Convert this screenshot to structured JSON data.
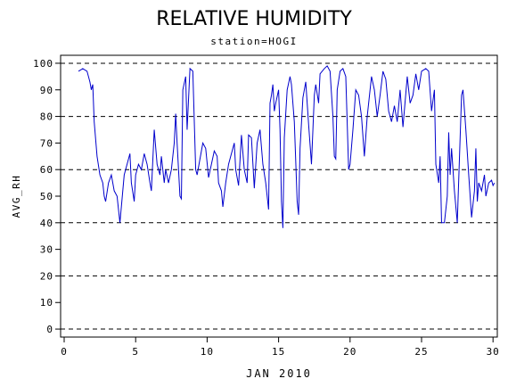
{
  "chart_data": {
    "type": "line",
    "title": "RELATIVE HUMIDITY",
    "subtitle": "station=HOGI",
    "y_label": "AVG_RH",
    "x_label": "JAN 2010",
    "color": "#0000cc",
    "xlim": [
      -0.25,
      30.3
    ],
    "ylim": [
      -3,
      103
    ],
    "xticks": [
      0,
      5,
      10,
      15,
      20,
      25,
      30
    ],
    "yticks": [
      0,
      10,
      20,
      30,
      40,
      50,
      60,
      70,
      80,
      90,
      100
    ],
    "ygrid": [
      0,
      20,
      40,
      60,
      80,
      100
    ],
    "x": [
      1.0,
      1.3,
      1.6,
      1.8,
      1.9,
      2.0,
      2.1,
      2.3,
      2.5,
      2.7,
      2.8,
      2.9,
      3.1,
      3.3,
      3.5,
      3.7,
      3.8,
      3.9,
      4.0,
      4.2,
      4.4,
      4.6,
      4.7,
      4.9,
      5.0,
      5.2,
      5.4,
      5.6,
      5.8,
      6.0,
      6.1,
      6.3,
      6.5,
      6.7,
      6.8,
      7.0,
      7.1,
      7.3,
      7.5,
      7.7,
      7.8,
      7.9,
      8.1,
      8.2,
      8.3,
      8.5,
      8.6,
      8.8,
      9.0,
      9.2,
      9.3,
      9.5,
      9.7,
      9.9,
      10.1,
      10.3,
      10.5,
      10.7,
      10.8,
      11.0,
      11.1,
      11.3,
      11.5,
      11.7,
      11.9,
      12.0,
      12.2,
      12.4,
      12.6,
      12.8,
      12.9,
      13.1,
      13.3,
      13.5,
      13.7,
      13.9,
      14.1,
      14.3,
      14.4,
      14.5,
      14.6,
      14.7,
      14.8,
      15.0,
      15.1,
      15.2,
      15.3,
      15.4,
      15.6,
      15.8,
      15.9,
      16.1,
      16.3,
      16.4,
      16.5,
      16.7,
      16.9,
      17.1,
      17.3,
      17.5,
      17.6,
      17.8,
      17.9,
      18.2,
      18.4,
      18.6,
      18.8,
      18.9,
      19.0,
      19.1,
      19.3,
      19.5,
      19.7,
      19.9,
      20.0,
      20.2,
      20.4,
      20.6,
      20.8,
      21.0,
      21.2,
      21.5,
      21.7,
      21.9,
      22.1,
      22.3,
      22.5,
      22.7,
      22.9,
      23.1,
      23.3,
      23.5,
      23.7,
      24.0,
      24.2,
      24.4,
      24.6,
      24.8,
      25.0,
      25.3,
      25.5,
      25.7,
      25.9,
      26.0,
      26.2,
      26.3,
      26.4,
      26.6,
      26.8,
      26.9,
      27.0,
      27.1,
      27.3,
      27.5,
      27.7,
      27.8,
      27.9,
      28.1,
      28.3,
      28.5,
      28.7,
      28.8,
      28.9,
      29.0,
      29.2,
      29.4,
      29.5,
      29.7,
      29.9,
      30.0,
      30.1
    ],
    "values": [
      97,
      98,
      97,
      93,
      90,
      92,
      78,
      65,
      58,
      55,
      50,
      48,
      55,
      58,
      52,
      50,
      45,
      40,
      46,
      58,
      62,
      66,
      55,
      48,
      58,
      62,
      60,
      66,
      62,
      55,
      52,
      75,
      62,
      58,
      65,
      55,
      60,
      55,
      60,
      70,
      81,
      70,
      50,
      49,
      90,
      95,
      75,
      98,
      97,
      60,
      58,
      64,
      70,
      68,
      57,
      62,
      67,
      65,
      55,
      52,
      46,
      55,
      62,
      66,
      70,
      60,
      54,
      73,
      60,
      55,
      73,
      72,
      53,
      70,
      75,
      62,
      55,
      45,
      85,
      88,
      92,
      82,
      85,
      90,
      75,
      48,
      38,
      72,
      90,
      95,
      92,
      78,
      48,
      43,
      68,
      87,
      93,
      77,
      62,
      88,
      92,
      85,
      96,
      98,
      99,
      97,
      80,
      65,
      64,
      90,
      97,
      98,
      95,
      60,
      62,
      75,
      90,
      88,
      80,
      65,
      80,
      95,
      90,
      80,
      88,
      97,
      94,
      82,
      78,
      84,
      78,
      90,
      76,
      95,
      85,
      88,
      96,
      90,
      97,
      98,
      97,
      82,
      90,
      62,
      55,
      65,
      40,
      40,
      50,
      74,
      58,
      68,
      52,
      40,
      72,
      88,
      90,
      75,
      58,
      42,
      52,
      68,
      48,
      55,
      52,
      58,
      50,
      55,
      56,
      54,
      55
    ]
  }
}
